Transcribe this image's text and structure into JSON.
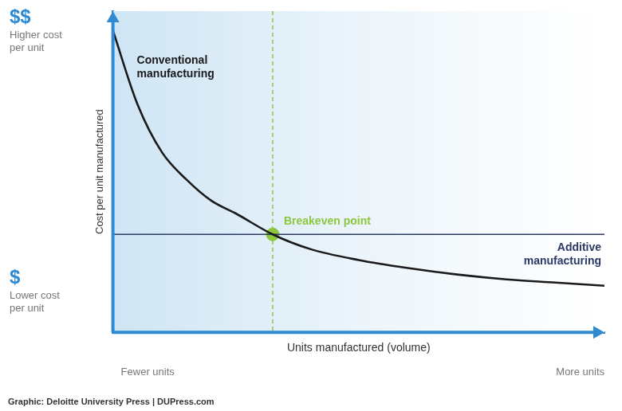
{
  "chart_data": {
    "type": "line",
    "x_label": "Units manufactured (volume)",
    "y_label": "Cost per unit manufactured",
    "xlim": [
      0,
      100
    ],
    "ylim": [
      0,
      100
    ],
    "tick_labels": false,
    "grid": false,
    "x": [
      0,
      5,
      10,
      15,
      20,
      25,
      32.5,
      40,
      50,
      60,
      70,
      80,
      90,
      100
    ],
    "series": [
      {
        "name": "Conventional manufacturing",
        "color": "#1a1a1a",
        "values": [
          94,
          71,
          56,
          47.5,
          41,
          37,
          30.5,
          26,
          22.5,
          20,
          18,
          16.5,
          15.5,
          14.5
        ]
      },
      {
        "name": "Additive manufacturing",
        "color": "#2b3a67",
        "values": [
          30.5,
          30.5,
          30.5,
          30.5,
          30.5,
          30.5,
          30.5,
          30.5,
          30.5,
          30.5,
          30.5,
          30.5,
          30.5,
          30.5
        ]
      }
    ],
    "breakeven": {
      "label": "Breakeven point",
      "x": 32.5,
      "y": 30.5,
      "color": "#8dc63f"
    },
    "y_axis_ends": {
      "high": {
        "symbol": "$$",
        "label": "Higher cost per unit"
      },
      "low": {
        "symbol": "$",
        "label": "Lower cost per unit"
      }
    },
    "x_axis_ends": {
      "low": "Fewer units",
      "high": "More units"
    },
    "source": "Graphic: Deloitte University Press | DUPress.com"
  }
}
